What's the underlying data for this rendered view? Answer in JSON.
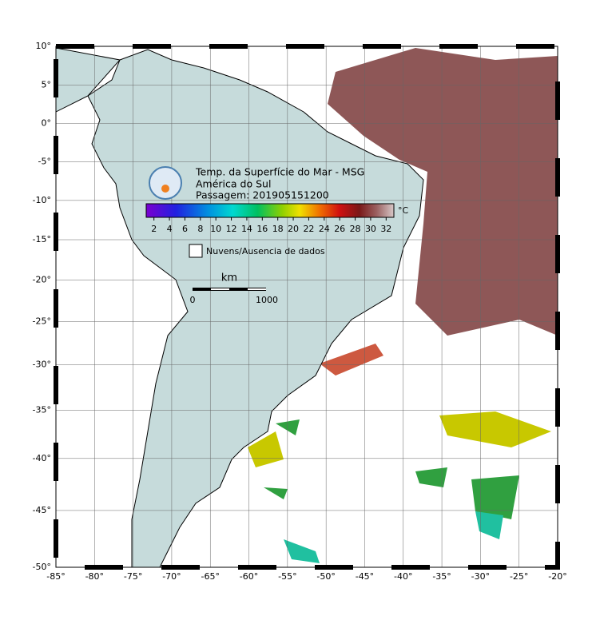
{
  "header": {
    "lines": [
      "Temp. da Superfície do Mar - MSG",
      "América do Sul",
      "Passagem: 201905151200"
    ]
  },
  "colorbar": {
    "ticks": [
      2,
      4,
      6,
      8,
      10,
      12,
      14,
      16,
      18,
      20,
      22,
      24,
      26,
      28,
      30,
      32
    ],
    "range": [
      1,
      33
    ],
    "unit": "°C"
  },
  "legend": {
    "label": "Nuvens/Ausencia de dados"
  },
  "scale_bar": {
    "unit": "km",
    "labels": [
      "0",
      "1000"
    ]
  },
  "axes": {
    "lon_range": [
      -85,
      -20
    ],
    "lat_range": [
      -50,
      10
    ],
    "lon_ticks": [
      {
        "value": -85,
        "label": "-85°"
      },
      {
        "value": -80,
        "label": "-80°"
      },
      {
        "value": -75,
        "label": "-75°"
      },
      {
        "value": -70,
        "label": "-70°"
      },
      {
        "value": -65,
        "label": "-65°"
      },
      {
        "value": -60,
        "label": "-60°"
      },
      {
        "value": -55,
        "label": "-55°"
      },
      {
        "value": -50,
        "label": "-50°"
      },
      {
        "value": -45,
        "label": "-45°"
      },
      {
        "value": -40,
        "label": "-40°"
      },
      {
        "value": -35,
        "label": "-35°"
      },
      {
        "value": -30,
        "label": "-30°"
      },
      {
        "value": -25,
        "label": "-25°"
      },
      {
        "value": -20,
        "label": "-20°"
      }
    ],
    "lat_ticks": [
      {
        "value": 10,
        "label": "10°"
      },
      {
        "value": 5,
        "label": "5°"
      },
      {
        "value": 0,
        "label": "0°"
      },
      {
        "value": -5,
        "label": "-5°"
      },
      {
        "value": -10,
        "label": "-10°"
      },
      {
        "value": -15,
        "label": "-15°"
      },
      {
        "value": -20,
        "label": "-20°"
      },
      {
        "value": -25,
        "label": "-25°"
      },
      {
        "value": -30,
        "label": "-30°"
      },
      {
        "value": -35,
        "label": "-35°"
      },
      {
        "value": -40,
        "label": "-40°"
      },
      {
        "value": -45,
        "label": "-45°"
      },
      {
        "value": -50,
        "label": "-50°"
      }
    ]
  }
}
